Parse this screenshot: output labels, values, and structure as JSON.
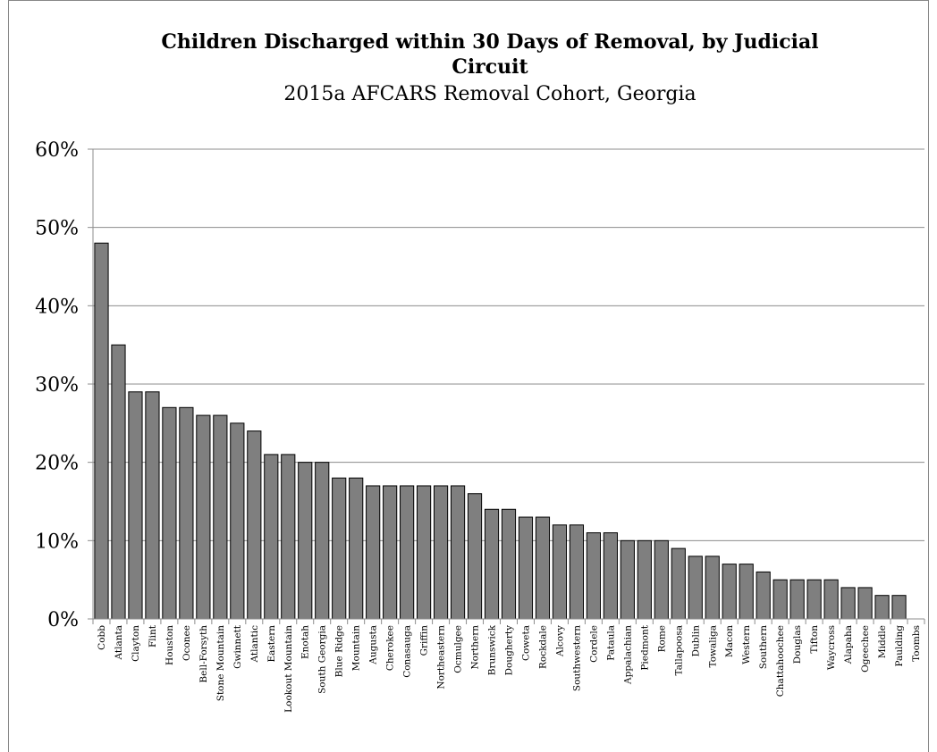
{
  "chart_data": {
    "type": "bar",
    "title": "Children Discharged within 30 Days of Removal, by Judicial Circuit",
    "title_line1": "Children Discharged within 30 Days of Removal, by Judicial",
    "title_line2": "Circuit",
    "subtitle": "2015a AFCARS Removal Cohort, Georgia",
    "xlabel": "",
    "ylabel": "",
    "ylim": [
      0,
      60
    ],
    "yticks": [
      "0%",
      "10%",
      "20%",
      "30%",
      "40%",
      "50%",
      "60%"
    ],
    "grid": true,
    "legend": "none",
    "bar_color": "#7f7f7f",
    "categories": [
      "Cobb",
      "Atlanta",
      "Clayton",
      "Flint",
      "Houston",
      "Oconee",
      "Bell-Forsyth",
      "Stone Mountain",
      "Gwinnett",
      "Atlantic",
      "Eastern",
      "Lookout Mountain",
      "Enotah",
      "South Georgia",
      "Blue Ridge",
      "Mountain",
      "Augusta",
      "Cherokee",
      "Conasauga",
      "Griffin",
      "Northeastern",
      "Ocmulgee",
      "Northern",
      "Brunswick",
      "Dougherty",
      "Coweta",
      "Rockdale",
      "Alcovy",
      "Southwestern",
      "Cordele",
      "Pataula",
      "Appalachian",
      "Piedmont",
      "Rome",
      "Tallapoosa",
      "Dublin",
      "Towaliga",
      "Macon",
      "Western",
      "Southern",
      "Chattahoochee",
      "Douglas",
      "Tifton",
      "Waycross",
      "Alapaha",
      "Ogeechee",
      "Middle",
      "Paulding",
      "Toombs"
    ],
    "values": [
      48,
      35,
      29,
      29,
      27,
      27,
      26,
      26,
      25,
      24,
      21,
      21,
      20,
      20,
      18,
      18,
      17,
      17,
      17,
      17,
      17,
      17,
      16,
      14,
      14,
      13,
      13,
      12,
      12,
      11,
      11,
      10,
      10,
      10,
      9,
      8,
      8,
      7,
      7,
      6,
      5,
      5,
      5,
      5,
      4,
      4,
      3,
      3,
      0
    ]
  }
}
